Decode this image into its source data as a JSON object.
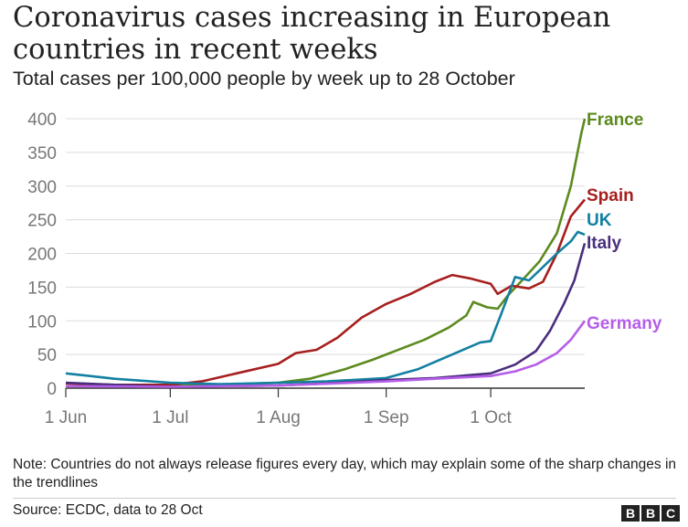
{
  "chart_data": {
    "type": "line",
    "title": "Coronavirus cases increasing in European countries in recent weeks",
    "subtitle": "Total cases per 100,000 people by week up to 28 October",
    "x_ticks": [
      "1 Jun",
      "1 Jul",
      "1 Aug",
      "1 Sep",
      "1 Oct"
    ],
    "y_ticks": [
      0,
      50,
      100,
      150,
      200,
      250,
      300,
      350,
      400
    ],
    "ylim": [
      0,
      400
    ],
    "xlim": [
      "2020-06-01",
      "2020-10-28"
    ],
    "grid": "horizontal",
    "legend": "direct labels at line ends",
    "series": [
      {
        "name": "France",
        "color": "#5c8a1e",
        "points": [
          [
            "2020-06-01",
            3
          ],
          [
            "2020-06-15",
            3
          ],
          [
            "2020-07-01",
            3
          ],
          [
            "2020-07-15",
            5
          ],
          [
            "2020-08-01",
            8
          ],
          [
            "2020-08-10",
            14
          ],
          [
            "2020-08-20",
            28
          ],
          [
            "2020-08-28",
            42
          ],
          [
            "2020-09-05",
            58
          ],
          [
            "2020-09-12",
            72
          ],
          [
            "2020-09-19",
            90
          ],
          [
            "2020-09-24",
            108
          ],
          [
            "2020-09-26",
            128
          ],
          [
            "2020-09-30",
            120
          ],
          [
            "2020-10-03",
            118
          ],
          [
            "2020-10-06",
            138
          ],
          [
            "2020-10-10",
            160
          ],
          [
            "2020-10-15",
            188
          ],
          [
            "2020-10-20",
            230
          ],
          [
            "2020-10-24",
            300
          ],
          [
            "2020-10-27",
            378
          ],
          [
            "2020-10-28",
            400
          ]
        ]
      },
      {
        "name": "Spain",
        "color": "#a71e1e",
        "points": [
          [
            "2020-06-01",
            7
          ],
          [
            "2020-06-15",
            5
          ],
          [
            "2020-07-01",
            5
          ],
          [
            "2020-07-10",
            10
          ],
          [
            "2020-07-20",
            22
          ],
          [
            "2020-08-01",
            36
          ],
          [
            "2020-08-06",
            52
          ],
          [
            "2020-08-12",
            57
          ],
          [
            "2020-08-18",
            75
          ],
          [
            "2020-08-25",
            105
          ],
          [
            "2020-09-01",
            125
          ],
          [
            "2020-09-08",
            140
          ],
          [
            "2020-09-15",
            158
          ],
          [
            "2020-09-20",
            168
          ],
          [
            "2020-09-25",
            163
          ],
          [
            "2020-10-01",
            155
          ],
          [
            "2020-10-03",
            140
          ],
          [
            "2020-10-07",
            152
          ],
          [
            "2020-10-12",
            148
          ],
          [
            "2020-10-16",
            158
          ],
          [
            "2020-10-20",
            200
          ],
          [
            "2020-10-24",
            255
          ],
          [
            "2020-10-28",
            280
          ]
        ]
      },
      {
        "name": "UK",
        "color": "#1380a1",
        "points": [
          [
            "2020-06-01",
            22
          ],
          [
            "2020-06-08",
            18
          ],
          [
            "2020-06-15",
            14
          ],
          [
            "2020-07-01",
            8
          ],
          [
            "2020-07-15",
            6
          ],
          [
            "2020-08-01",
            8
          ],
          [
            "2020-08-15",
            10
          ],
          [
            "2020-09-01",
            15
          ],
          [
            "2020-09-10",
            28
          ],
          [
            "2020-09-20",
            50
          ],
          [
            "2020-09-28",
            68
          ],
          [
            "2020-10-01",
            70
          ],
          [
            "2020-10-04",
            110
          ],
          [
            "2020-10-08",
            165
          ],
          [
            "2020-10-12",
            160
          ],
          [
            "2020-10-16",
            180
          ],
          [
            "2020-10-20",
            200
          ],
          [
            "2020-10-24",
            218
          ],
          [
            "2020-10-26",
            232
          ],
          [
            "2020-10-28",
            228
          ]
        ]
      },
      {
        "name": "Italy",
        "color": "#4a2e7e",
        "points": [
          [
            "2020-06-01",
            8
          ],
          [
            "2020-06-15",
            5
          ],
          [
            "2020-07-01",
            2
          ],
          [
            "2020-07-15",
            3
          ],
          [
            "2020-08-01",
            4
          ],
          [
            "2020-08-15",
            7
          ],
          [
            "2020-09-01",
            12
          ],
          [
            "2020-09-15",
            15
          ],
          [
            "2020-10-01",
            22
          ],
          [
            "2020-10-08",
            35
          ],
          [
            "2020-10-14",
            55
          ],
          [
            "2020-10-18",
            85
          ],
          [
            "2020-10-22",
            125
          ],
          [
            "2020-10-25",
            160
          ],
          [
            "2020-10-28",
            215
          ]
        ]
      },
      {
        "name": "Germany",
        "color": "#b55ee8",
        "points": [
          [
            "2020-06-01",
            3
          ],
          [
            "2020-07-01",
            2
          ],
          [
            "2020-08-01",
            4
          ],
          [
            "2020-09-01",
            10
          ],
          [
            "2020-09-15",
            14
          ],
          [
            "2020-10-01",
            18
          ],
          [
            "2020-10-08",
            25
          ],
          [
            "2020-10-14",
            35
          ],
          [
            "2020-10-20",
            52
          ],
          [
            "2020-10-24",
            72
          ],
          [
            "2020-10-28",
            100
          ]
        ]
      }
    ]
  },
  "note": "Note: Countries do not always release figures every day, which may explain some of the sharp changes in the trendlines",
  "source": "Source: ECDC, data to 28 Oct",
  "logo": [
    "B",
    "B",
    "C"
  ]
}
